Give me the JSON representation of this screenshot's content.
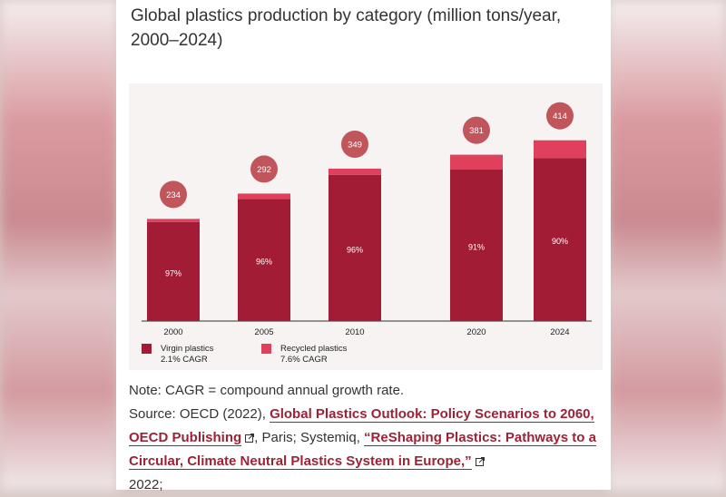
{
  "title": "Global plastics production by category (million tons/year, 2000–2024)",
  "chart_data": {
    "type": "bar",
    "stacked": true,
    "categories": [
      "2000",
      "2005",
      "2010",
      "2020",
      "2024"
    ],
    "totals": [
      234,
      292,
      349,
      381,
      414
    ],
    "virgin_share_labels": [
      "97%",
      "96%",
      "96%",
      "91%",
      "90%"
    ],
    "series": [
      {
        "name": "Virgin plastics",
        "values": [
          227,
          280,
          335,
          347,
          373
        ],
        "color": "#a31c35"
      },
      {
        "name": "Recycled plastics",
        "values": [
          7,
          12,
          14,
          34,
          41
        ],
        "color": "#e0405c"
      }
    ],
    "legend": [
      {
        "label": "Virgin plastics",
        "sub": "2.1% CAGR",
        "color": "#a31c35"
      },
      {
        "label": "Recycled plastics",
        "sub": "7.6% CAGR",
        "color": "#e0405c"
      }
    ],
    "bubble_color": "#c0555c",
    "ylim": [
      0,
      430
    ],
    "legend_position": "bottom-left",
    "grid": false
  },
  "notes": {
    "note": "Note: CAGR = compound annual growth rate.",
    "source_prefix": "Source: OECD (2022), ",
    "link1": "Global Plastics Outlook: Policy Scenarios to 2060, OECD Publishing",
    "middle": ", Paris; Systemiq, ",
    "link2": "“ReShaping Plastics: Pathways to a Circular, Climate Neutral Plastics System in Europe,”",
    "suffix": " 2022;"
  }
}
